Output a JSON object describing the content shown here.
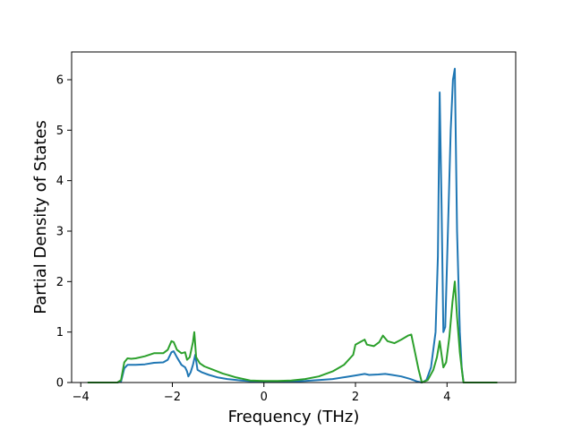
{
  "chart_data": {
    "type": "line",
    "title": "",
    "xlabel": "Frequency (THz)",
    "ylabel": "Partial Density of States",
    "xlim": [
      -4.2,
      5.5
    ],
    "ylim": [
      0,
      6.55
    ],
    "xticks": [
      -4,
      -2,
      0,
      2,
      4
    ],
    "yticks": [
      0,
      1,
      2,
      3,
      4,
      5,
      6
    ],
    "grid": false,
    "legend": "none",
    "series": [
      {
        "color": "#1f77b4",
        "points": [
          [
            -3.85,
            0.0
          ],
          [
            -3.2,
            0.0
          ],
          [
            -3.12,
            0.02
          ],
          [
            -3.05,
            0.28
          ],
          [
            -2.98,
            0.35
          ],
          [
            -2.9,
            0.35
          ],
          [
            -2.8,
            0.35
          ],
          [
            -2.6,
            0.36
          ],
          [
            -2.4,
            0.39
          ],
          [
            -2.2,
            0.4
          ],
          [
            -2.1,
            0.45
          ],
          [
            -2.02,
            0.6
          ],
          [
            -1.97,
            0.62
          ],
          [
            -1.9,
            0.5
          ],
          [
            -1.8,
            0.35
          ],
          [
            -1.72,
            0.3
          ],
          [
            -1.68,
            0.22
          ],
          [
            -1.65,
            0.12
          ],
          [
            -1.6,
            0.2
          ],
          [
            -1.55,
            0.35
          ],
          [
            -1.5,
            0.55
          ],
          [
            -1.45,
            0.25
          ],
          [
            -1.35,
            0.2
          ],
          [
            -1.2,
            0.15
          ],
          [
            -1.0,
            0.1
          ],
          [
            -0.8,
            0.07
          ],
          [
            -0.5,
            0.04
          ],
          [
            -0.2,
            0.02
          ],
          [
            0.0,
            0.02
          ],
          [
            0.3,
            0.02
          ],
          [
            0.6,
            0.02
          ],
          [
            0.9,
            0.03
          ],
          [
            1.2,
            0.05
          ],
          [
            1.5,
            0.07
          ],
          [
            1.8,
            0.11
          ],
          [
            2.0,
            0.14
          ],
          [
            2.2,
            0.17
          ],
          [
            2.3,
            0.15
          ],
          [
            2.5,
            0.16
          ],
          [
            2.65,
            0.17
          ],
          [
            2.8,
            0.15
          ],
          [
            3.0,
            0.12
          ],
          [
            3.2,
            0.07
          ],
          [
            3.35,
            0.02
          ],
          [
            3.45,
            0.0
          ],
          [
            3.55,
            0.05
          ],
          [
            3.65,
            0.3
          ],
          [
            3.75,
            1.0
          ],
          [
            3.8,
            2.5
          ],
          [
            3.84,
            5.75
          ],
          [
            3.88,
            3.5
          ],
          [
            3.92,
            1.0
          ],
          [
            3.96,
            1.1
          ],
          [
            4.02,
            3.0
          ],
          [
            4.08,
            5.0
          ],
          [
            4.13,
            6.0
          ],
          [
            4.17,
            6.22
          ],
          [
            4.22,
            3.0
          ],
          [
            4.28,
            1.0
          ],
          [
            4.32,
            0.3
          ],
          [
            4.36,
            0.0
          ],
          [
            5.1,
            0.0
          ]
        ]
      },
      {
        "color": "#2ca02c",
        "points": [
          [
            -3.85,
            0.0
          ],
          [
            -3.2,
            0.0
          ],
          [
            -3.12,
            0.05
          ],
          [
            -3.05,
            0.4
          ],
          [
            -2.98,
            0.48
          ],
          [
            -2.9,
            0.47
          ],
          [
            -2.8,
            0.48
          ],
          [
            -2.6,
            0.52
          ],
          [
            -2.4,
            0.58
          ],
          [
            -2.2,
            0.58
          ],
          [
            -2.1,
            0.65
          ],
          [
            -2.02,
            0.82
          ],
          [
            -1.97,
            0.8
          ],
          [
            -1.9,
            0.65
          ],
          [
            -1.8,
            0.58
          ],
          [
            -1.72,
            0.6
          ],
          [
            -1.68,
            0.45
          ],
          [
            -1.62,
            0.5
          ],
          [
            -1.55,
            0.8
          ],
          [
            -1.52,
            1.0
          ],
          [
            -1.48,
            0.5
          ],
          [
            -1.4,
            0.38
          ],
          [
            -1.3,
            0.32
          ],
          [
            -1.1,
            0.25
          ],
          [
            -0.9,
            0.18
          ],
          [
            -0.6,
            0.1
          ],
          [
            -0.3,
            0.04
          ],
          [
            0.0,
            0.03
          ],
          [
            0.3,
            0.03
          ],
          [
            0.6,
            0.04
          ],
          [
            0.9,
            0.07
          ],
          [
            1.2,
            0.12
          ],
          [
            1.5,
            0.22
          ],
          [
            1.75,
            0.35
          ],
          [
            1.95,
            0.55
          ],
          [
            2.0,
            0.75
          ],
          [
            2.2,
            0.85
          ],
          [
            2.25,
            0.75
          ],
          [
            2.4,
            0.72
          ],
          [
            2.52,
            0.8
          ],
          [
            2.6,
            0.93
          ],
          [
            2.7,
            0.82
          ],
          [
            2.85,
            0.78
          ],
          [
            3.0,
            0.85
          ],
          [
            3.15,
            0.93
          ],
          [
            3.22,
            0.95
          ],
          [
            3.3,
            0.6
          ],
          [
            3.38,
            0.25
          ],
          [
            3.45,
            0.0
          ],
          [
            3.58,
            0.05
          ],
          [
            3.7,
            0.25
          ],
          [
            3.78,
            0.5
          ],
          [
            3.84,
            0.82
          ],
          [
            3.88,
            0.55
          ],
          [
            3.92,
            0.3
          ],
          [
            3.98,
            0.4
          ],
          [
            4.05,
            0.9
          ],
          [
            4.12,
            1.6
          ],
          [
            4.17,
            2.0
          ],
          [
            4.22,
            1.3
          ],
          [
            4.28,
            0.6
          ],
          [
            4.33,
            0.2
          ],
          [
            4.36,
            0.0
          ],
          [
            5.1,
            0.0
          ]
        ]
      }
    ]
  }
}
